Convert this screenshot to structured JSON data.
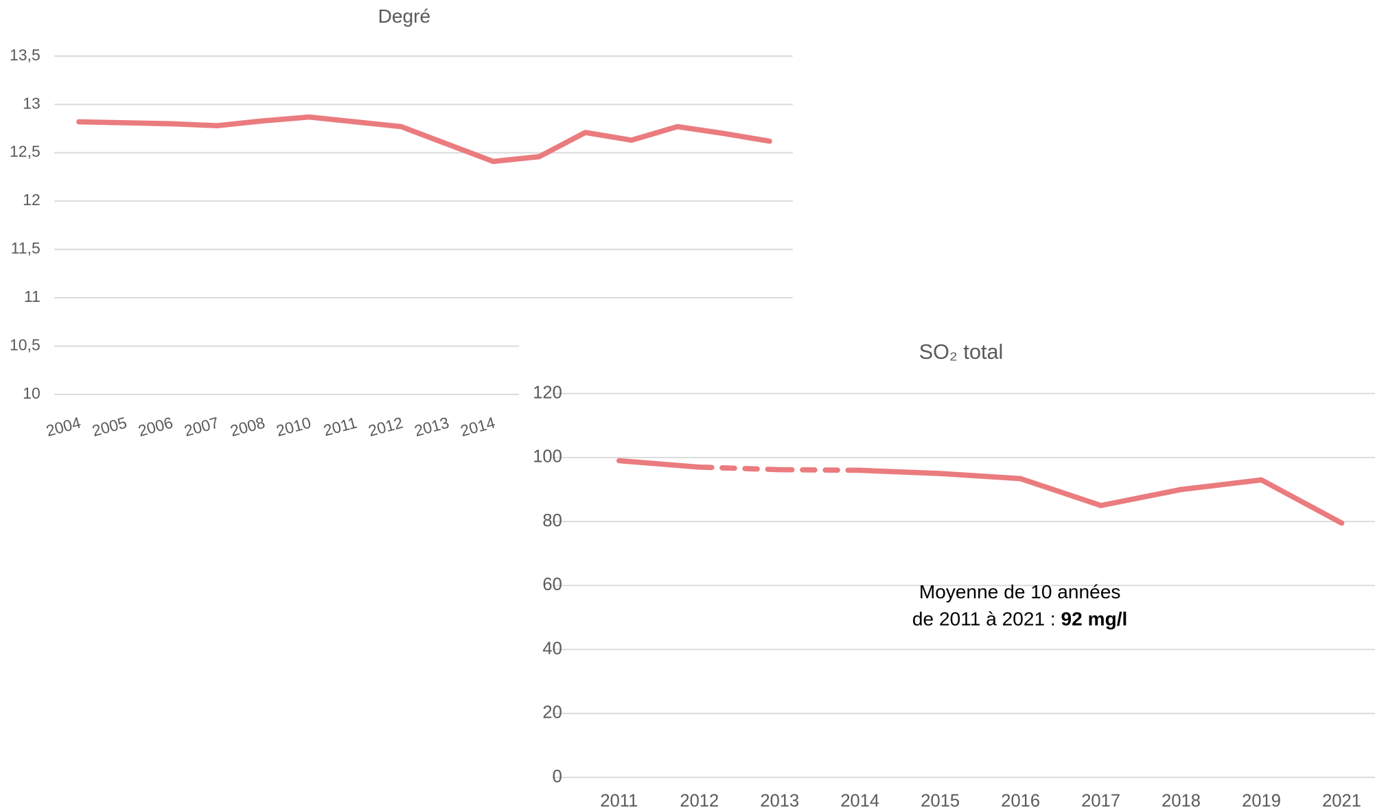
{
  "chart_data": [
    {
      "type": "line",
      "title": "Degré",
      "color": "#ea7b7e",
      "grid": true,
      "categories": [
        "2004",
        "2005",
        "2006",
        "2007",
        "2008",
        "2010",
        "2011",
        "2012",
        "2013",
        "2014",
        null,
        null,
        null,
        null,
        null,
        null
      ],
      "values": [
        12.82,
        12.81,
        12.8,
        12.78,
        12.83,
        12.87,
        12.82,
        12.77,
        12.59,
        12.41,
        12.46,
        12.71,
        12.63,
        12.77,
        12.7,
        12.62
      ],
      "ylim": [
        10,
        13.5
      ],
      "yticks": [
        {
          "value": 10,
          "label": "10"
        },
        {
          "value": 10.5,
          "label": "10,5"
        },
        {
          "value": 11,
          "label": "11"
        },
        {
          "value": 11.5,
          "label": "11,5"
        },
        {
          "value": 12,
          "label": "12"
        },
        {
          "value": 12.5,
          "label": "12,5"
        },
        {
          "value": 13,
          "label": "13"
        },
        {
          "value": 13.5,
          "label": "13,5"
        }
      ]
    },
    {
      "type": "line",
      "title": "SO₂ total",
      "color": "#ea7b7e",
      "grid": true,
      "categories": [
        "2011",
        "2012",
        "2013",
        "2014",
        "2015",
        "2016",
        "2017",
        "2018",
        "2019",
        "2021"
      ],
      "values": [
        99,
        97,
        96.2,
        96,
        95,
        93.4,
        85,
        90,
        93,
        79.5
      ],
      "dashed_categories": [
        "2012",
        "2013",
        "2014"
      ],
      "ylim": [
        0,
        120
      ],
      "yticks": [
        0,
        20,
        40,
        60,
        80,
        100,
        120
      ],
      "annotation": {
        "lines": [
          "Moyenne de 10 années",
          "de 2011 à 2021 : "
        ],
        "bold": "92 mg/l"
      }
    }
  ]
}
